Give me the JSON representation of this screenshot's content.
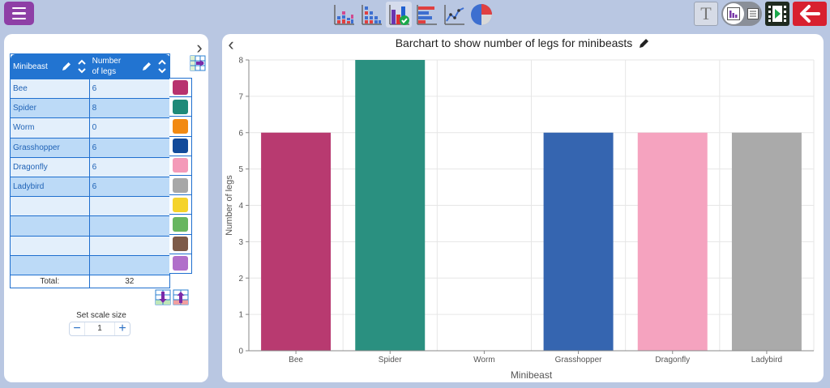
{
  "toolbar": {
    "menu_icon": "hamburger-menu-icon",
    "chart_type_icons": [
      "stacked-bar-chart-icon",
      "dot-plot-icon",
      "bar-chart-icon",
      "horizontal-bar-chart-icon",
      "line-chart-icon",
      "pie-chart-icon"
    ],
    "selected_chart_icon": "bar-chart-icon",
    "text_button_label": "T",
    "colors": {
      "menu": "#8e3fa6",
      "back": "#d8202f",
      "topbar": "#b9c7e2"
    }
  },
  "table": {
    "col1_header": "Minibeast",
    "col2_header_line1": "Number",
    "col2_header_line2": "of legs",
    "rows": [
      {
        "name": "Bee",
        "value": "6",
        "color": "#b8326e"
      },
      {
        "name": "Spider",
        "value": "8",
        "color": "#1f8a78"
      },
      {
        "name": "Worm",
        "value": "0",
        "color": "#f28a13"
      },
      {
        "name": "Grasshopper",
        "value": "6",
        "color": "#124a9a"
      },
      {
        "name": "Dragonfly",
        "value": "6",
        "color": "#f49ab8"
      },
      {
        "name": "Ladybird",
        "value": "6",
        "color": "#a7a7a7"
      },
      {
        "name": "",
        "value": "",
        "color": "#f5d32a"
      },
      {
        "name": "",
        "value": "",
        "color": "#68b65f"
      },
      {
        "name": "",
        "value": "",
        "color": "#7d5a48"
      },
      {
        "name": "",
        "value": "",
        "color": "#b16fca"
      }
    ],
    "total_label": "Total:",
    "total_value": "32"
  },
  "scale": {
    "label": "Set scale size",
    "value": "1",
    "minus": "−",
    "plus": "+"
  },
  "chart_data": {
    "type": "bar",
    "title": "Barchart to show number of legs for minibeasts",
    "xlabel": "Minibeast",
    "ylabel": "Number of legs",
    "categories": [
      "Bee",
      "Spider",
      "Worm",
      "Grasshopper",
      "Dragonfly",
      "Ladybird"
    ],
    "values": [
      6,
      8,
      0,
      6,
      6,
      6
    ],
    "colors": [
      "#b83a70",
      "#2a9080",
      "#e8912a",
      "#3565b0",
      "#f5a3bf",
      "#aaaaaa"
    ],
    "ylim": [
      0,
      8
    ],
    "yticks": [
      0,
      1,
      2,
      3,
      4,
      5,
      6,
      7,
      8
    ],
    "grid": true
  }
}
